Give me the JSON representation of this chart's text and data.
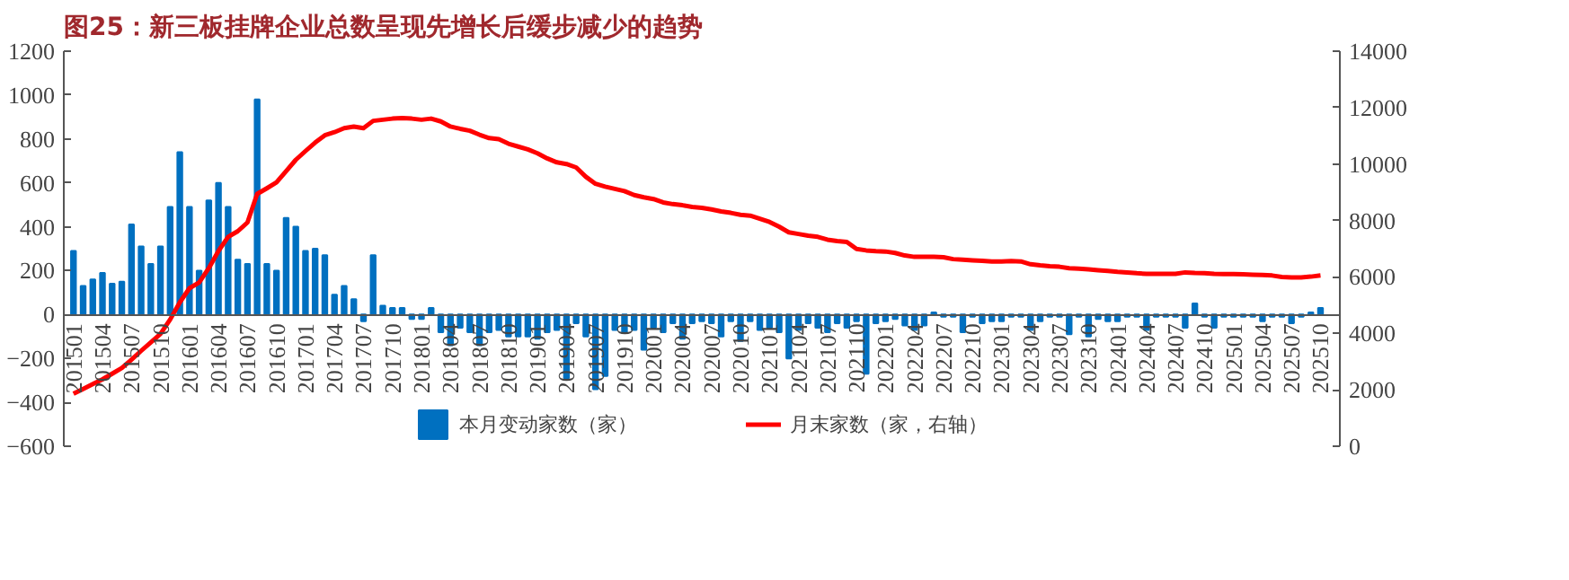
{
  "chart_data": {
    "type": "bar",
    "title": "图25：新三板挂牌企业总数呈现先增长后缓步减少的趋势",
    "categories": [
      "201501",
      null,
      null,
      "201504",
      null,
      null,
      "201507",
      null,
      null,
      "201510",
      null,
      null,
      "201601",
      null,
      null,
      "201604",
      null,
      null,
      "201607",
      null,
      null,
      "201610",
      null,
      null,
      "201701",
      null,
      null,
      "201704",
      null,
      null,
      "201707",
      null,
      null,
      "201710",
      null,
      null,
      "201801",
      null,
      null,
      "201804",
      null,
      null,
      "201807",
      null,
      null,
      "201810",
      null,
      null,
      "201901",
      null,
      null,
      "201904",
      null,
      null,
      "201907",
      null,
      null,
      "201910",
      null,
      null,
      "202001",
      null,
      null,
      "202004",
      null,
      null,
      "202007",
      null,
      null,
      "202010",
      null,
      null,
      "202101",
      null,
      null,
      "202104",
      null,
      null,
      "202107",
      null,
      null,
      "202110",
      null,
      null,
      "202201",
      null,
      null,
      "202204",
      null,
      null,
      "202207",
      null,
      null,
      "202210",
      null,
      null,
      "202301",
      null,
      null,
      "202304",
      null,
      null,
      "202307",
      null,
      null,
      "202310",
      null,
      null,
      "202401",
      null,
      null,
      "202404",
      null,
      null,
      "202407",
      null,
      null,
      "202410",
      null,
      null,
      "202501",
      null,
      null,
      "202504",
      null,
      null,
      "202507",
      null,
      null,
      "202510"
    ],
    "series": [
      {
        "name": "本月变动家数（家）",
        "color": "#0070c0",
        "values": [
          290,
          130,
          160,
          190,
          140,
          150,
          410,
          310,
          230,
          310,
          490,
          740,
          490,
          200,
          520,
          600,
          490,
          250,
          230,
          980,
          230,
          200,
          440,
          400,
          290,
          300,
          270,
          90,
          130,
          70,
          -30,
          270,
          40,
          30,
          30,
          -20,
          -20,
          30,
          -80,
          -140,
          -60,
          -80,
          -140,
          -80,
          -70,
          -100,
          -100,
          -100,
          -110,
          -80,
          -70,
          -290,
          -40,
          -100,
          -340,
          -280,
          -70,
          -80,
          -70,
          -160,
          -60,
          -80,
          -40,
          -110,
          -40,
          -30,
          -40,
          -100,
          -30,
          -120,
          -30,
          -70,
          -60,
          -80,
          -200,
          -70,
          -40,
          -60,
          -80,
          -40,
          -60,
          -30,
          -270,
          -40,
          -30,
          -20,
          -50,
          -70,
          -50,
          10,
          -10,
          -10,
          -80,
          -10,
          -40,
          -30,
          -30,
          -10,
          -10,
          -70,
          -30,
          -10,
          -10,
          -90,
          -10,
          -100,
          -20,
          -30,
          -30,
          -10,
          -10,
          -70,
          -10,
          -10,
          -10,
          -60,
          50,
          -10,
          -60,
          -10,
          -10,
          -10,
          -10,
          -30,
          -10,
          -10,
          -40,
          -10,
          10,
          30
        ]
      },
      {
        "name": "月末家数（家，右轴）",
        "type": "line",
        "axis": "y2",
        "color": "#ff0000",
        "values": [
          1860,
          2030,
          2200,
          2370,
          2570,
          2770,
          3070,
          3380,
          3680,
          3980,
          4490,
          5100,
          5600,
          5800,
          6310,
          6920,
          7420,
          7620,
          7930,
          8940,
          9140,
          9350,
          9750,
          10150,
          10460,
          10760,
          11020,
          11130,
          11270,
          11330,
          11270,
          11530,
          11570,
          11610,
          11630,
          11610,
          11570,
          11610,
          11510,
          11330,
          11250,
          11180,
          11040,
          10920,
          10880,
          10720,
          10620,
          10520,
          10380,
          10200,
          10060,
          10000,
          9880,
          9550,
          9300,
          9200,
          9120,
          9040,
          8900,
          8820,
          8760,
          8640,
          8580,
          8540,
          8480,
          8450,
          8390,
          8320,
          8270,
          8200,
          8170,
          8060,
          7950,
          7780,
          7580,
          7520,
          7460,
          7420,
          7320,
          7270,
          7240,
          6990,
          6940,
          6910,
          6900,
          6850,
          6760,
          6710,
          6710,
          6710,
          6700,
          6630,
          6610,
          6590,
          6570,
          6550,
          6550,
          6560,
          6550,
          6450,
          6410,
          6380,
          6360,
          6310,
          6290,
          6270,
          6240,
          6210,
          6180,
          6160,
          6130,
          6110,
          6110,
          6110,
          6110,
          6160,
          6140,
          6130,
          6110,
          6100,
          6100,
          6090,
          6080,
          6070,
          6050,
          6000,
          5980,
          5980,
          6010,
          6050
        ]
      }
    ],
    "ylim": [
      -600,
      1200
    ],
    "yticks": [
      -600,
      -400,
      -200,
      0,
      200,
      400,
      600,
      800,
      1000,
      1200
    ],
    "y2lim": [
      0,
      14000
    ],
    "y2ticks": [
      0,
      2000,
      4000,
      6000,
      8000,
      10000,
      12000,
      14000
    ],
    "legend": "bottom",
    "grid": false
  }
}
